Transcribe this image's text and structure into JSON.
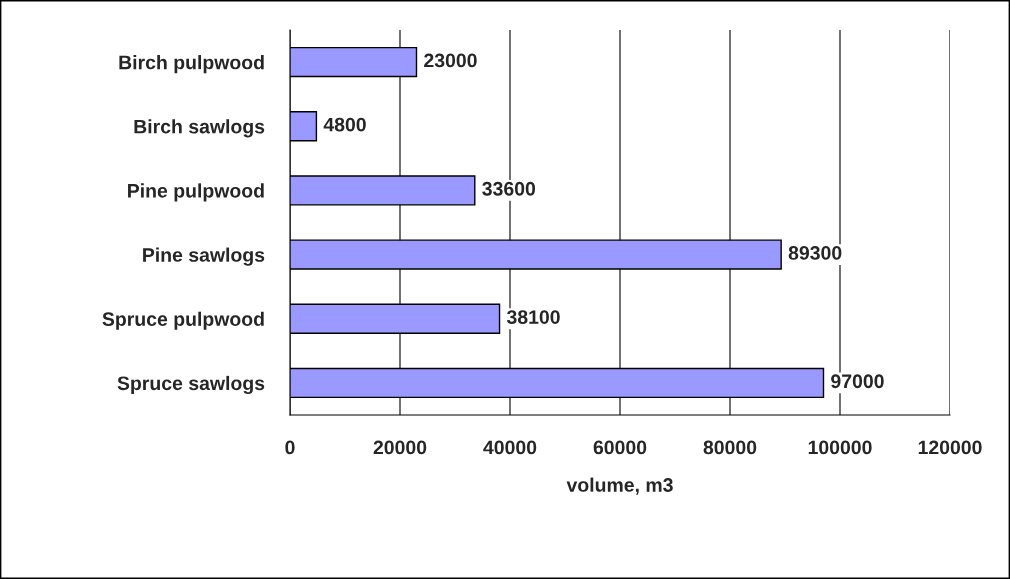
{
  "chart_data": {
    "type": "bar",
    "orientation": "horizontal",
    "xlabel": "volume, m3",
    "categories": [
      "Birch pulpwood",
      "Birch sawlogs",
      "Pine pulpwood",
      "Pine sawlogs",
      "Spruce pulpwood",
      "Spruce sawlogs"
    ],
    "values": [
      23000,
      4800,
      33600,
      89300,
      38100,
      97000
    ],
    "color": "#9999ff",
    "xlim": [
      0,
      120000
    ],
    "xticks": [
      0,
      20000,
      40000,
      60000,
      80000,
      100000,
      120000
    ],
    "grid": "x",
    "data_labels": true,
    "legend": false
  }
}
